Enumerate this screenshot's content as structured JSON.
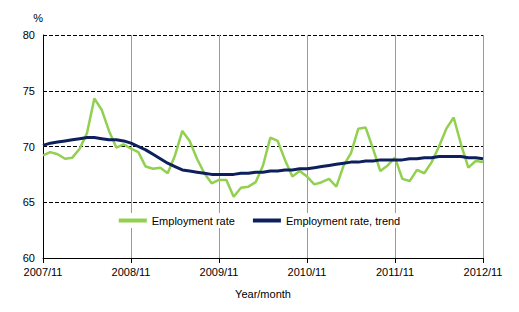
{
  "chart_data": {
    "type": "line",
    "y_label": "%",
    "x_label": "Year/month",
    "categories": [
      "2007/11",
      null,
      null,
      null,
      null,
      null,
      null,
      null,
      null,
      null,
      null,
      null,
      "2008/11",
      null,
      null,
      null,
      null,
      null,
      null,
      null,
      null,
      null,
      null,
      null,
      "2009/11",
      null,
      null,
      null,
      null,
      null,
      null,
      null,
      null,
      null,
      null,
      null,
      "2010/11",
      null,
      null,
      null,
      null,
      null,
      null,
      null,
      null,
      null,
      null,
      null,
      "2011/11",
      null,
      null,
      null,
      null,
      null,
      null,
      null,
      null,
      null,
      null,
      null,
      "2012/11"
    ],
    "series": [
      {
        "name": "Employment rate",
        "color": "#92d050",
        "values": [
          69.2,
          69.5,
          69.3,
          68.9,
          69.0,
          69.8,
          71.2,
          74.3,
          73.3,
          71.4,
          69.9,
          70.2,
          69.8,
          69.5,
          68.2,
          68.0,
          68.1,
          67.6,
          69.2,
          71.4,
          70.5,
          68.9,
          67.6,
          66.7,
          67.0,
          67.0,
          65.5,
          66.3,
          66.4,
          66.8,
          68.3,
          70.8,
          70.5,
          68.8,
          67.3,
          67.8,
          67.3,
          66.6,
          66.8,
          67.1,
          66.4,
          68.3,
          69.4,
          71.6,
          71.7,
          69.8,
          67.8,
          68.3,
          69.0,
          67.1,
          66.9,
          67.9,
          67.6,
          68.6,
          70.0,
          71.6,
          72.6,
          70.2,
          68.1,
          68.7,
          68.6
        ]
      },
      {
        "name": "Employment rate, trend",
        "color": "#0d1f5c",
        "values": [
          70.1,
          70.3,
          70.4,
          70.5,
          70.6,
          70.7,
          70.8,
          70.8,
          70.7,
          70.6,
          70.6,
          70.5,
          70.3,
          70.0,
          69.7,
          69.3,
          68.9,
          68.5,
          68.2,
          67.9,
          67.8,
          67.7,
          67.6,
          67.5,
          67.5,
          67.5,
          67.5,
          67.6,
          67.6,
          67.7,
          67.7,
          67.8,
          67.8,
          67.9,
          67.9,
          68.0,
          68.0,
          68.1,
          68.2,
          68.3,
          68.4,
          68.5,
          68.6,
          68.6,
          68.7,
          68.7,
          68.8,
          68.8,
          68.8,
          68.8,
          68.9,
          68.9,
          69.0,
          69.0,
          69.1,
          69.1,
          69.1,
          69.1,
          69.0,
          69.0,
          68.9
        ]
      }
    ],
    "ylim": [
      60,
      80
    ],
    "yticks": [
      60,
      65,
      70,
      75,
      80
    ],
    "grid": true,
    "legend": "bottom"
  }
}
